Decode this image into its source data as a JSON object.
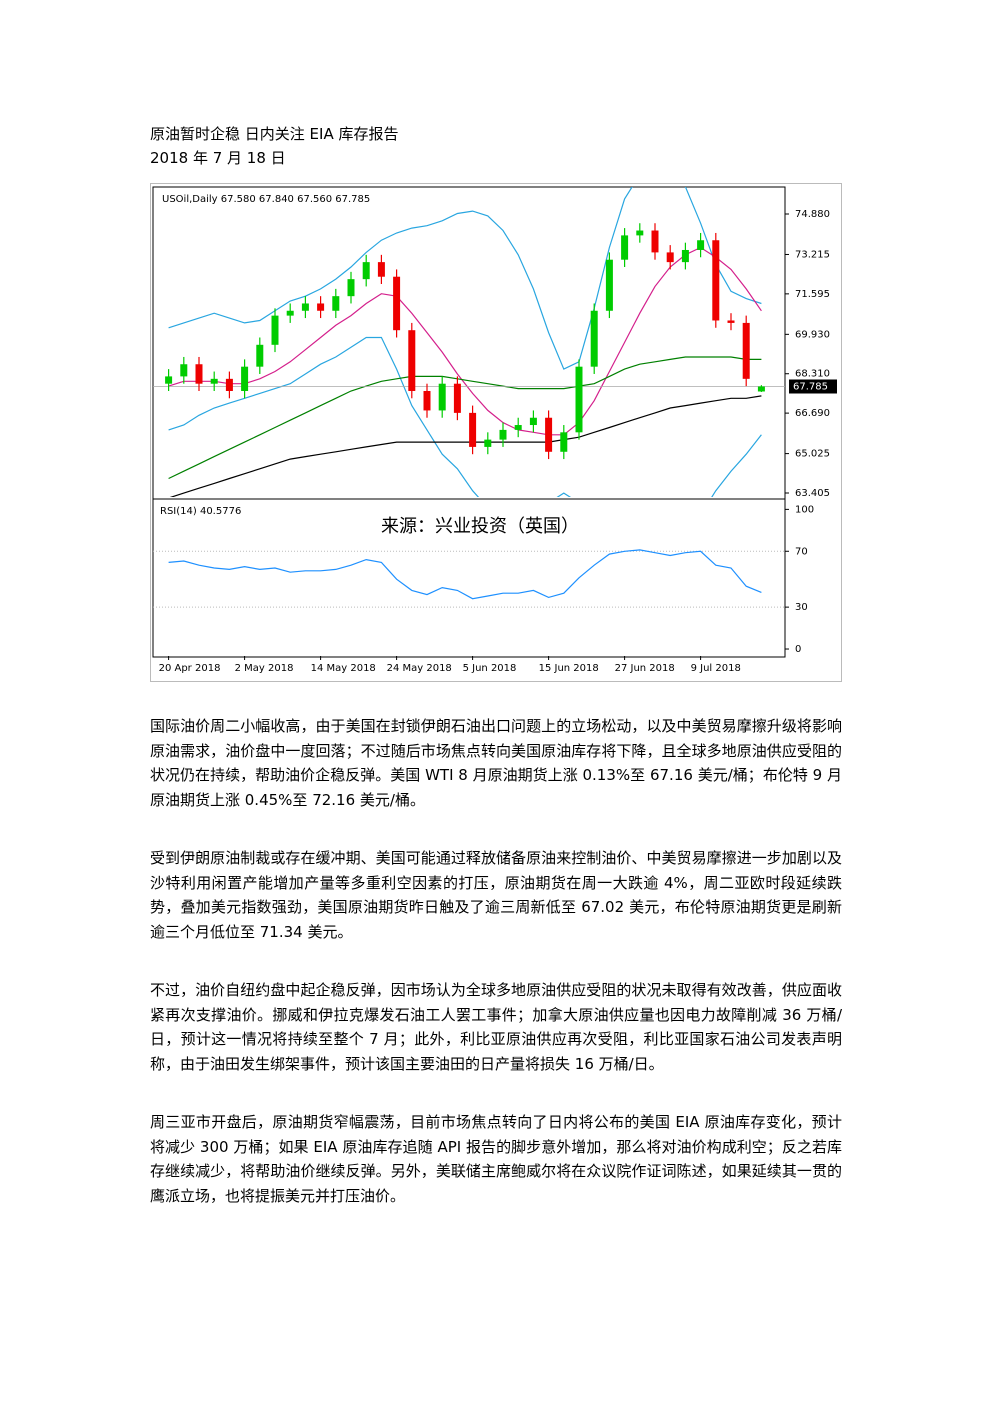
{
  "header": {
    "title": "原油暂时企稳  日内关注 EIA 库存报告",
    "date": "2018 年 7 月 18 日"
  },
  "chart_data": {
    "type": "candlestick",
    "legend_text": "USOil,Daily 67.580 67.840 67.560 67.785",
    "watermark": "来源：兴业投资（英国）",
    "categories": [
      "20 Apr 2018",
      null,
      null,
      null,
      null,
      "2 May 2018",
      null,
      null,
      null,
      null,
      "14 May 2018",
      null,
      null,
      null,
      null,
      "24 May 2018",
      null,
      null,
      null,
      null,
      "5 Jun 2018",
      null,
      null,
      null,
      null,
      "15 Jun 2018",
      null,
      null,
      null,
      null,
      "27 Jun 2018",
      null,
      null,
      null,
      null,
      "9 Jul 2018",
      null,
      null,
      null,
      null
    ],
    "open": [
      67.9,
      68.2,
      68.7,
      67.9,
      68.1,
      67.6,
      68.6,
      69.5,
      70.7,
      70.9,
      71.2,
      70.9,
      71.5,
      72.2,
      72.9,
      72.3,
      70.1,
      67.6,
      66.8,
      67.9,
      66.7,
      65.3,
      65.6,
      66.0,
      66.2,
      66.5,
      65.1,
      65.9,
      68.6,
      70.9,
      73.0,
      74.0,
      74.2,
      73.3,
      72.9,
      73.4,
      73.8,
      70.5,
      70.4,
      67.58
    ],
    "high": [
      68.5,
      69.0,
      69.0,
      68.4,
      68.4,
      68.9,
      69.8,
      71.0,
      71.2,
      71.5,
      71.5,
      71.8,
      72.5,
      73.2,
      73.2,
      72.6,
      70.4,
      67.9,
      68.2,
      68.2,
      67.0,
      65.9,
      66.3,
      66.5,
      66.8,
      66.8,
      66.2,
      68.9,
      71.2,
      73.3,
      74.3,
      74.5,
      74.5,
      73.6,
      73.7,
      74.1,
      74.1,
      70.8,
      70.7,
      67.84
    ],
    "low": [
      67.6,
      67.9,
      67.6,
      67.6,
      67.3,
      67.3,
      68.3,
      69.2,
      70.4,
      70.6,
      70.6,
      70.6,
      71.2,
      71.9,
      72.0,
      69.8,
      67.3,
      66.5,
      66.5,
      66.4,
      65.0,
      65.0,
      65.3,
      65.7,
      65.9,
      64.8,
      64.8,
      65.6,
      68.3,
      70.6,
      72.7,
      73.7,
      73.0,
      72.6,
      72.6,
      73.1,
      70.2,
      70.1,
      67.8,
      67.56
    ],
    "close": [
      68.2,
      68.7,
      67.9,
      68.1,
      67.6,
      68.6,
      69.5,
      70.7,
      70.9,
      71.2,
      70.9,
      71.5,
      72.2,
      72.9,
      72.3,
      70.1,
      67.6,
      66.8,
      67.9,
      66.7,
      65.3,
      65.6,
      66.0,
      66.2,
      66.5,
      65.1,
      65.9,
      68.6,
      70.9,
      73.0,
      74.0,
      74.2,
      73.3,
      72.9,
      73.4,
      73.8,
      70.5,
      70.4,
      68.1,
      67.785
    ],
    "up_color": "#00cc00",
    "down_color": "#ee0000",
    "overlays": [
      {
        "color": "#29a6e0",
        "values": [
          70.2,
          70.4,
          70.6,
          70.8,
          70.6,
          70.4,
          70.5,
          70.9,
          71.3,
          71.5,
          71.8,
          72.2,
          72.7,
          73.3,
          73.8,
          74.1,
          74.3,
          74.4,
          74.6,
          74.9,
          75.0,
          74.8,
          74.2,
          73.2,
          71.8,
          70.0,
          68.5,
          68.8,
          71.0,
          73.5,
          75.5,
          76.5,
          77.0,
          76.8,
          76.0,
          74.5,
          72.8,
          71.7,
          71.4,
          71.2
        ]
      },
      {
        "color": "#29a6e0",
        "values": [
          66.0,
          66.2,
          66.6,
          66.9,
          67.1,
          67.3,
          67.5,
          67.7,
          67.9,
          68.3,
          68.7,
          69.0,
          69.4,
          69.8,
          69.8,
          68.5,
          67.0,
          66.0,
          65.0,
          64.4,
          63.5,
          62.8,
          62.7,
          62.9,
          63.0,
          63.0,
          63.4,
          63.0,
          62.5,
          62.0,
          61.5,
          61.0,
          60.5,
          60.8,
          61.5,
          62.5,
          63.5,
          64.3,
          65.0,
          65.8
        ]
      },
      {
        "color": "#d4208c",
        "values": [
          67.8,
          68.0,
          68.0,
          68.0,
          67.9,
          67.9,
          68.1,
          68.4,
          68.8,
          69.3,
          69.8,
          70.3,
          70.7,
          71.2,
          71.6,
          71.5,
          70.8,
          70.0,
          69.2,
          68.3,
          67.5,
          66.8,
          66.3,
          66.0,
          65.9,
          65.8,
          65.8,
          66.3,
          67.2,
          68.4,
          69.6,
          70.8,
          71.9,
          72.7,
          73.2,
          73.5,
          73.1,
          72.6,
          71.8,
          70.9
        ]
      },
      {
        "color": "#008000",
        "values": [
          64.0,
          64.3,
          64.6,
          64.9,
          65.2,
          65.5,
          65.8,
          66.1,
          66.4,
          66.7,
          67.0,
          67.3,
          67.6,
          67.8,
          68.0,
          68.1,
          68.2,
          68.2,
          68.2,
          68.1,
          68.0,
          67.9,
          67.8,
          67.7,
          67.7,
          67.7,
          67.7,
          67.8,
          67.9,
          68.2,
          68.5,
          68.7,
          68.8,
          68.9,
          69.0,
          69.0,
          69.0,
          69.0,
          68.9,
          68.9
        ]
      },
      {
        "color": "#000000",
        "values": [
          63.2,
          63.4,
          63.6,
          63.8,
          64.0,
          64.2,
          64.4,
          64.6,
          64.8,
          64.9,
          65.0,
          65.1,
          65.2,
          65.3,
          65.4,
          65.5,
          65.5,
          65.5,
          65.5,
          65.5,
          65.5,
          65.5,
          65.5,
          65.5,
          65.5,
          65.5,
          65.6,
          65.7,
          65.9,
          66.1,
          66.3,
          66.5,
          66.7,
          66.9,
          67.0,
          67.1,
          67.2,
          67.3,
          67.3,
          67.4
        ]
      }
    ],
    "ylim": [
      63.24,
      75.99
    ],
    "yticks": [
      {
        "value": 74.88,
        "label": "74.880"
      },
      73.215,
      71.595,
      {
        "value": 69.93,
        "label": "69.930"
      },
      {
        "value": 68.31,
        "label": "68.310"
      },
      {
        "value": 66.69,
        "label": "66.690"
      },
      65.025,
      63.405
    ],
    "indicator": {
      "label": "RSI(14) 40.5776",
      "color": "#1e90ff",
      "ylim": [
        -5,
        106
      ],
      "yticks": [
        100,
        70,
        30,
        0
      ],
      "values": [
        62,
        63,
        60,
        58,
        57,
        59,
        57,
        58,
        55,
        56,
        56,
        57,
        60,
        64,
        62,
        50,
        42,
        39,
        44,
        42,
        36,
        38,
        40,
        40,
        42,
        37,
        40,
        51,
        60,
        68,
        70,
        71,
        69,
        67,
        69,
        70,
        60,
        58,
        45,
        40.5776
      ]
    }
  },
  "paragraphs": [
    "国际油价周二小幅收高，由于美国在封锁伊朗石油出口问题上的立场松动，以及中美贸易摩擦升级将影响原油需求，油价盘中一度回落；不过随后市场焦点转向美国原油库存将下降，且全球多地原油供应受阻的状况仍在持续，帮助油价企稳反弹。美国 WTI 8 月原油期货上涨 0.13%至 67.16 美元/桶；布伦特 9 月原油期货上涨 0.45%至 72.16 美元/桶。",
    "受到伊朗原油制裁或存在缓冲期、美国可能通过释放储备原油来控制油价、中美贸易摩擦进一步加剧以及沙特利用闲置产能增加产量等多重利空因素的打压，原油期货在周一大跌逾 4%，周二亚欧时段延续跌势，叠加美元指数强劲，美国原油期货昨日触及了逾三周新低至 67.02 美元，布伦特原油期货更是刷新逾三个月低位至 71.34 美元。",
    "不过，油价自纽约盘中起企稳反弹，因市场认为全球多地原油供应受阻的状况未取得有效改善，供应面收紧再次支撑油价。挪威和伊拉克爆发石油工人罢工事件；加拿大原油供应量也因电力故障削减 36 万桶/日，预计这一情况将持续至整个 7 月；此外，利比亚原油供应再次受阻，利比亚国家石油公司发表声明称，由于油田发生绑架事件，预计该国主要油田的日产量将损失 16 万桶/日。",
    "周三亚市开盘后，原油期货窄幅震荡，目前市场焦点转向了日内将公布的美国 EIA 原油库存变化，预计将减少 300 万桶；如果 EIA 原油库存追随 API 报告的脚步意外增加，那么将对油价构成利空；反之若库存继续减少，将帮助油价继续反弹。另外，美联储主席鲍威尔将在众议院作证词陈述，如果延续其一贯的鹰派立场，也将提振美元并打压油价。"
  ]
}
